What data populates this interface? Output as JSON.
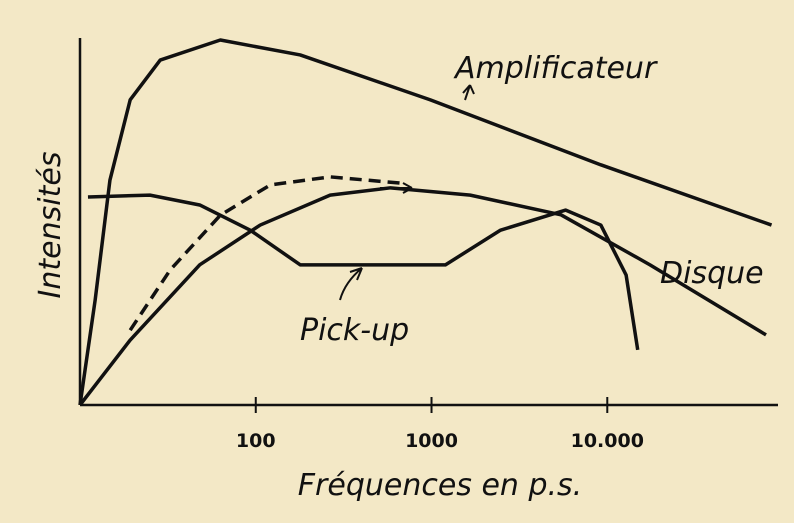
{
  "chart_data": {
    "type": "line",
    "x_label": "Fréquences en p.s.",
    "y_label": "Intensités",
    "x_log": true,
    "xlim": [
      10,
      90000
    ],
    "ylim": [
      0,
      100
    ],
    "xticks": [
      100,
      1000,
      {
        "value": 10000,
        "label": "10.000"
      }
    ],
    "series": [
      {
        "name": "Amplificateur",
        "color": "#111111",
        "dash": false,
        "x": [
          10,
          12.2,
          14.8,
          19.3,
          28.6,
          62.9,
          179,
          985,
          9190,
          86000
        ],
        "values": [
          0,
          28.8,
          61.6,
          83.6,
          94.5,
          100,
          95.9,
          83.6,
          65.8,
          49.3
        ]
      },
      {
        "name": "Disque",
        "color": "#111111",
        "dash": false,
        "x": [
          10,
          19.3,
          48,
          106,
          265,
          584,
          1660,
          5450,
          17500,
          80000
        ],
        "values": [
          0,
          17.8,
          38.4,
          49.3,
          57.5,
          59.5,
          57.5,
          52.1,
          38.4,
          19.2
        ]
      },
      {
        "name": "Pick-up",
        "color": "#111111",
        "dash": false,
        "x": [
          11.1,
          25,
          48,
          93,
          179,
          1200,
          2470,
          5800,
          9190,
          12800,
          14900
        ],
        "values": [
          57,
          57.5,
          54.8,
          47.9,
          38.4,
          38.4,
          47.9,
          53.4,
          49.3,
          35.6,
          15.1
        ]
      },
      {
        "color": "#111111",
        "dash": true,
        "x": [
          19.3,
          32.6,
          62.9,
          121,
          265,
          660
        ],
        "values": [
          20.5,
          37,
          52,
          60.3,
          62.5,
          60.8
        ]
      }
    ]
  }
}
